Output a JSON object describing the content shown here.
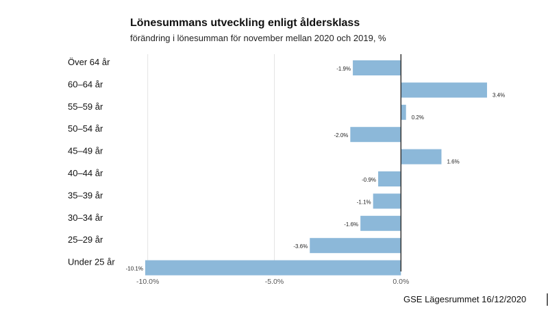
{
  "chart_data": {
    "type": "bar",
    "orientation": "horizontal",
    "title": "Lönesummans utveckling enligt åldersklass",
    "subtitle": "förändring i lönesumman för november mellan 2020 och 2019, %",
    "categories": [
      "Över 64 år",
      "60–64 år",
      "55–59 år",
      "50–54 år",
      "45–49 år",
      "40–44 år",
      "35–39 år",
      "30–34 år",
      "25–29 år",
      "Under 25 år"
    ],
    "values": [
      -1.9,
      3.4,
      0.2,
      -2.0,
      1.6,
      -0.9,
      -1.1,
      -1.6,
      -3.6,
      -10.1
    ],
    "value_labels": [
      "-1.9%",
      "3.4%",
      "0.2%",
      "-2.0%",
      "1.6%",
      "-0.9%",
      "-1.1%",
      "-1.6%",
      "-3.6%",
      "-10.1%"
    ],
    "xticks": [
      -10,
      -5,
      0
    ],
    "xtick_labels": [
      "-10.0%",
      "-5.0%",
      "0.0%"
    ],
    "xlim": [
      -10.1,
      3.4
    ],
    "grid": "vertical",
    "legend": "none",
    "bar_color": "#8cb8d9",
    "source": "GSE Lägesrummet 16/12/2020"
  }
}
